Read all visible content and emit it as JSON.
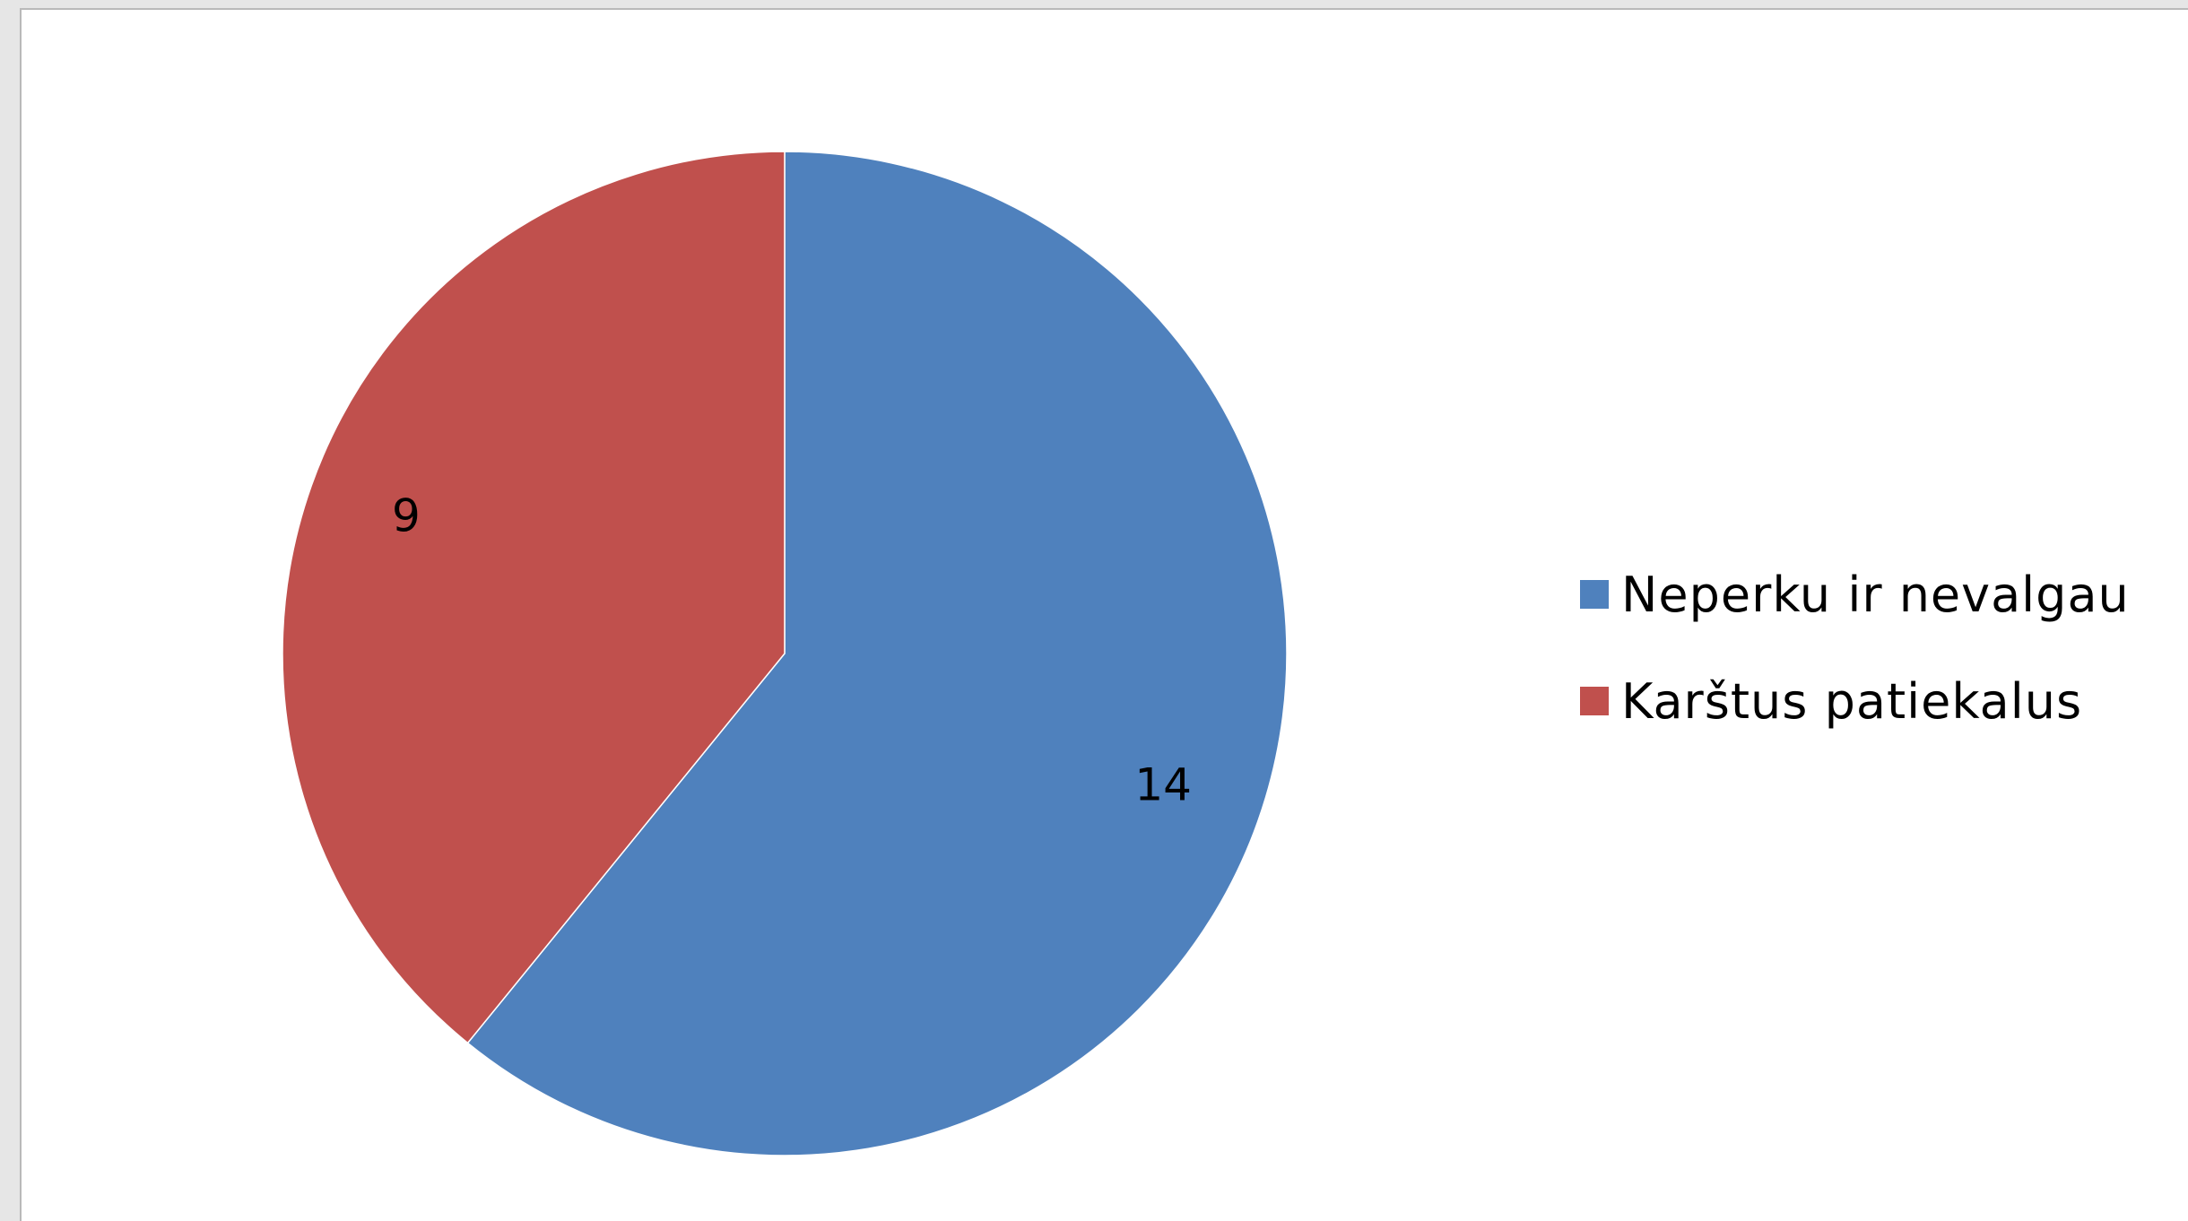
{
  "chart_data": {
    "type": "pie",
    "categories": [
      "Neperku ir nevalgau",
      "Karštus patiekalus"
    ],
    "values": [
      14,
      9
    ],
    "colors": [
      "#4f81bd",
      "#c0504d"
    ],
    "start_angle_deg": 0,
    "direction": "clockwise",
    "data_labels": [
      "14",
      "9"
    ],
    "legend": {
      "position": "right",
      "entries": [
        "Neperku ir nevalgau",
        "Karštus patiekalus"
      ]
    },
    "title": ""
  }
}
